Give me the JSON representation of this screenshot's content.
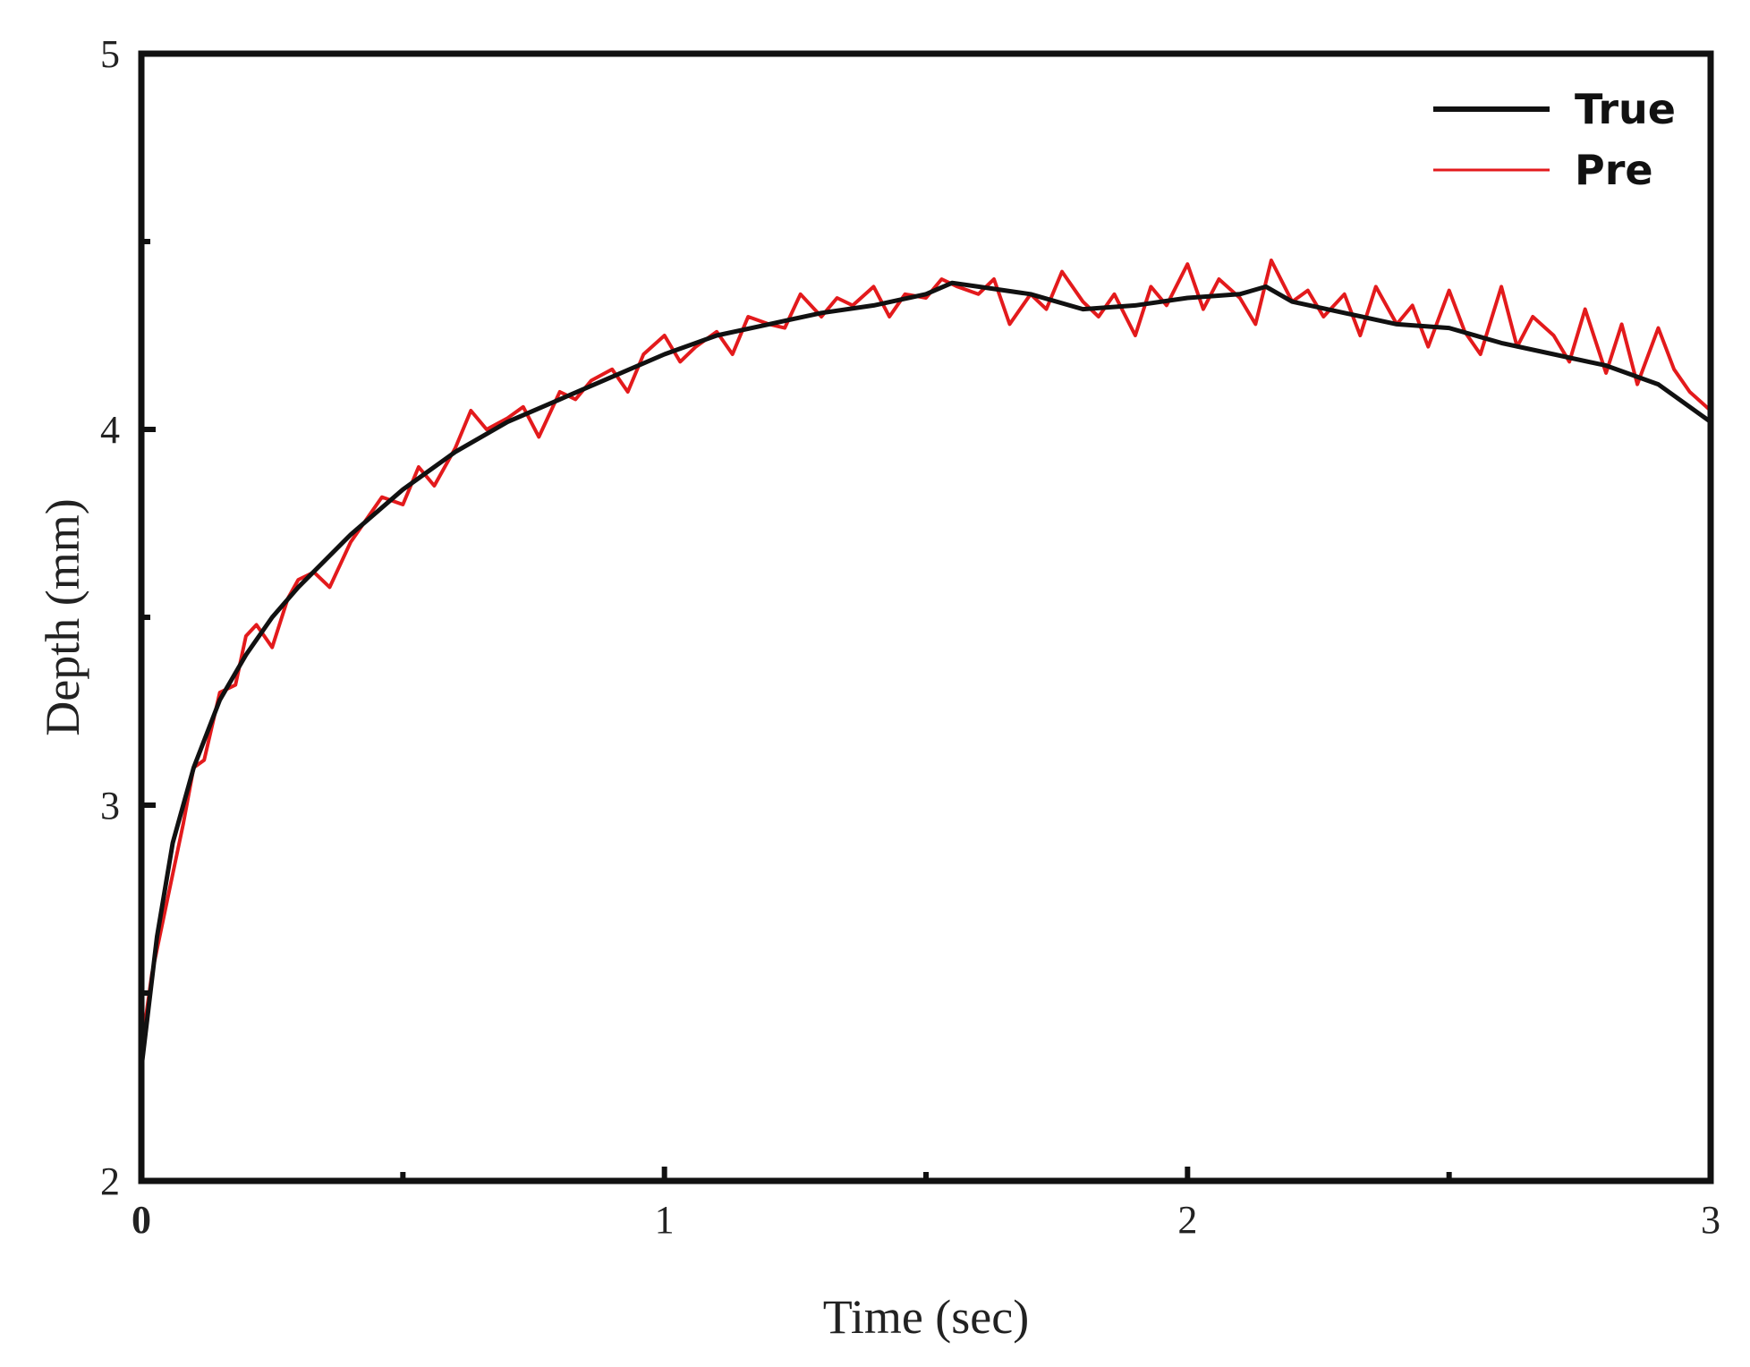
{
  "chart_data": {
    "type": "line",
    "title": "",
    "xlabel": "Time (sec)",
    "ylabel": "Depth (mm)",
    "xlim": [
      0,
      3
    ],
    "ylim": [
      2,
      5
    ],
    "x_ticks": [
      {
        "value": 0,
        "label": "0"
      },
      {
        "value": 1,
        "label": "1"
      },
      {
        "value": 2,
        "label": "2"
      },
      {
        "value": 3,
        "label": "3"
      }
    ],
    "x_minor_ticks": [
      0.5,
      1.5,
      2.5
    ],
    "y_ticks": [
      {
        "value": 2,
        "label": "2"
      },
      {
        "value": 3,
        "label": "3"
      },
      {
        "value": 4,
        "label": "4"
      },
      {
        "value": 5,
        "label": "5"
      }
    ],
    "y_minor_ticks": [
      2.5,
      3.5,
      4.5
    ],
    "grid": false,
    "legend_position": "top-right",
    "series": [
      {
        "name": "True",
        "color": "#111111",
        "x": [
          0,
          0.03,
          0.06,
          0.1,
          0.15,
          0.2,
          0.25,
          0.3,
          0.4,
          0.5,
          0.6,
          0.7,
          0.8,
          0.9,
          1.0,
          1.1,
          1.2,
          1.3,
          1.4,
          1.5,
          1.55,
          1.6,
          1.7,
          1.8,
          1.9,
          2.0,
          2.1,
          2.15,
          2.2,
          2.3,
          2.4,
          2.5,
          2.6,
          2.7,
          2.8,
          2.9,
          3.0
        ],
        "values": [
          2.3,
          2.65,
          2.9,
          3.1,
          3.28,
          3.4,
          3.5,
          3.58,
          3.72,
          3.84,
          3.94,
          4.02,
          4.08,
          4.14,
          4.2,
          4.25,
          4.28,
          4.31,
          4.33,
          4.36,
          4.39,
          4.38,
          4.36,
          4.32,
          4.33,
          4.35,
          4.36,
          4.38,
          4.34,
          4.31,
          4.28,
          4.27,
          4.23,
          4.2,
          4.17,
          4.12,
          4.02
        ]
      },
      {
        "name": "Pre",
        "color": "#e31a1c",
        "x": [
          0,
          0.02,
          0.05,
          0.08,
          0.1,
          0.12,
          0.15,
          0.18,
          0.2,
          0.22,
          0.25,
          0.28,
          0.3,
          0.33,
          0.36,
          0.4,
          0.43,
          0.46,
          0.5,
          0.53,
          0.56,
          0.6,
          0.63,
          0.66,
          0.7,
          0.73,
          0.76,
          0.8,
          0.83,
          0.86,
          0.9,
          0.93,
          0.96,
          1.0,
          1.03,
          1.06,
          1.1,
          1.13,
          1.16,
          1.2,
          1.23,
          1.26,
          1.3,
          1.33,
          1.36,
          1.4,
          1.43,
          1.46,
          1.5,
          1.53,
          1.56,
          1.6,
          1.63,
          1.66,
          1.7,
          1.73,
          1.76,
          1.8,
          1.83,
          1.86,
          1.9,
          1.93,
          1.96,
          2.0,
          2.03,
          2.06,
          2.1,
          2.13,
          2.16,
          2.2,
          2.23,
          2.26,
          2.3,
          2.33,
          2.36,
          2.4,
          2.43,
          2.46,
          2.5,
          2.53,
          2.56,
          2.6,
          2.63,
          2.66,
          2.7,
          2.73,
          2.76,
          2.8,
          2.83,
          2.86,
          2.9,
          2.93,
          2.96,
          3.0
        ],
        "values": [
          2.35,
          2.55,
          2.75,
          2.95,
          3.1,
          3.12,
          3.3,
          3.32,
          3.45,
          3.48,
          3.42,
          3.55,
          3.6,
          3.62,
          3.58,
          3.7,
          3.76,
          3.82,
          3.8,
          3.9,
          3.85,
          3.95,
          4.05,
          4.0,
          4.03,
          4.06,
          3.98,
          4.1,
          4.08,
          4.13,
          4.16,
          4.1,
          4.2,
          4.25,
          4.18,
          4.22,
          4.26,
          4.2,
          4.3,
          4.28,
          4.27,
          4.36,
          4.3,
          4.35,
          4.33,
          4.38,
          4.3,
          4.36,
          4.35,
          4.4,
          4.38,
          4.36,
          4.4,
          4.28,
          4.36,
          4.32,
          4.42,
          4.34,
          4.3,
          4.36,
          4.25,
          4.38,
          4.33,
          4.44,
          4.32,
          4.4,
          4.35,
          4.28,
          4.45,
          4.34,
          4.37,
          4.3,
          4.36,
          4.25,
          4.38,
          4.28,
          4.33,
          4.22,
          4.37,
          4.26,
          4.2,
          4.38,
          4.22,
          4.3,
          4.25,
          4.18,
          4.32,
          4.15,
          4.28,
          4.12,
          4.27,
          4.16,
          4.1,
          4.05
        ]
      }
    ]
  }
}
